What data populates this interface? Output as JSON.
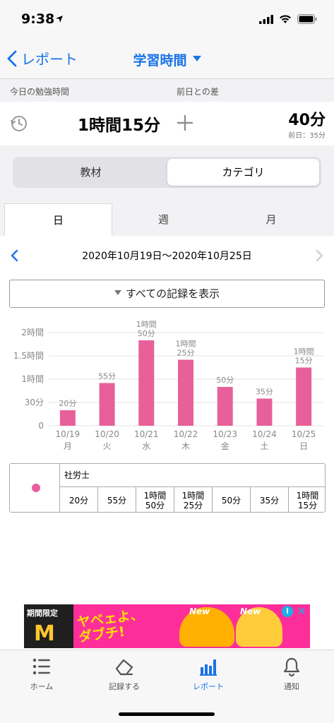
{
  "status_bar": {
    "time": "9:38"
  },
  "nav": {
    "back_label": "レポート",
    "title": "学習時間"
  },
  "summary": {
    "today_label": "今日の勉強時間",
    "diff_label": "前日との差",
    "today_value": "1時間15分",
    "diff_value": "40分",
    "prev_value": "前日：35分"
  },
  "segmented": {
    "left": "教材",
    "right": "カテゴリ",
    "selected": "カテゴリ"
  },
  "period_tabs": {
    "day": "日",
    "week": "週",
    "month": "月",
    "selected": "日"
  },
  "date_nav": {
    "range": "2020年10月19日〜2020年10月25日"
  },
  "show_all_button": "すべての記録を表示",
  "chart_data": {
    "type": "bar",
    "categories": [
      "10/19 月",
      "10/20 火",
      "10/21 水",
      "10/22 木",
      "10/23 金",
      "10/24 土",
      "10/25 日"
    ],
    "category_dates": [
      "10/19",
      "10/20",
      "10/21",
      "10/22",
      "10/23",
      "10/24",
      "10/25"
    ],
    "category_weekdays": [
      "月",
      "火",
      "水",
      "木",
      "金",
      "土",
      "日"
    ],
    "values": [
      20,
      55,
      110,
      85,
      50,
      35,
      75
    ],
    "value_labels": [
      "20分",
      "55分",
      "1時間\n50分",
      "1時間\n25分",
      "50分",
      "35分",
      "1時間\n15分"
    ],
    "yticks": [
      0,
      30,
      60,
      90,
      120
    ],
    "ytick_labels": [
      "0",
      "30分",
      "1時間",
      "1.5時間",
      "2時間"
    ],
    "ylim": [
      0,
      120
    ],
    "grid": "horizontal",
    "bar_color": "#e8609a"
  },
  "table": {
    "category": "社労士",
    "dot_color": "#e8609a",
    "cells": [
      "20分",
      "55分",
      "1時間\n50分",
      "1時間\n25分",
      "50分",
      "35分",
      "1時間\n15分"
    ]
  },
  "ad": {
    "label": "期間限定",
    "slogan_line1": "ヤベェよ、",
    "slogan_line2": "ダブチ!",
    "badge1": "New",
    "badge2": "New",
    "info": "i",
    "close": "✕"
  },
  "tab_bar": {
    "home": "ホーム",
    "record": "記録する",
    "report": "レポート",
    "notify": "通知",
    "selected": "レポート"
  },
  "colors": {
    "accent": "#1a73e8",
    "bar": "#e8609a"
  }
}
